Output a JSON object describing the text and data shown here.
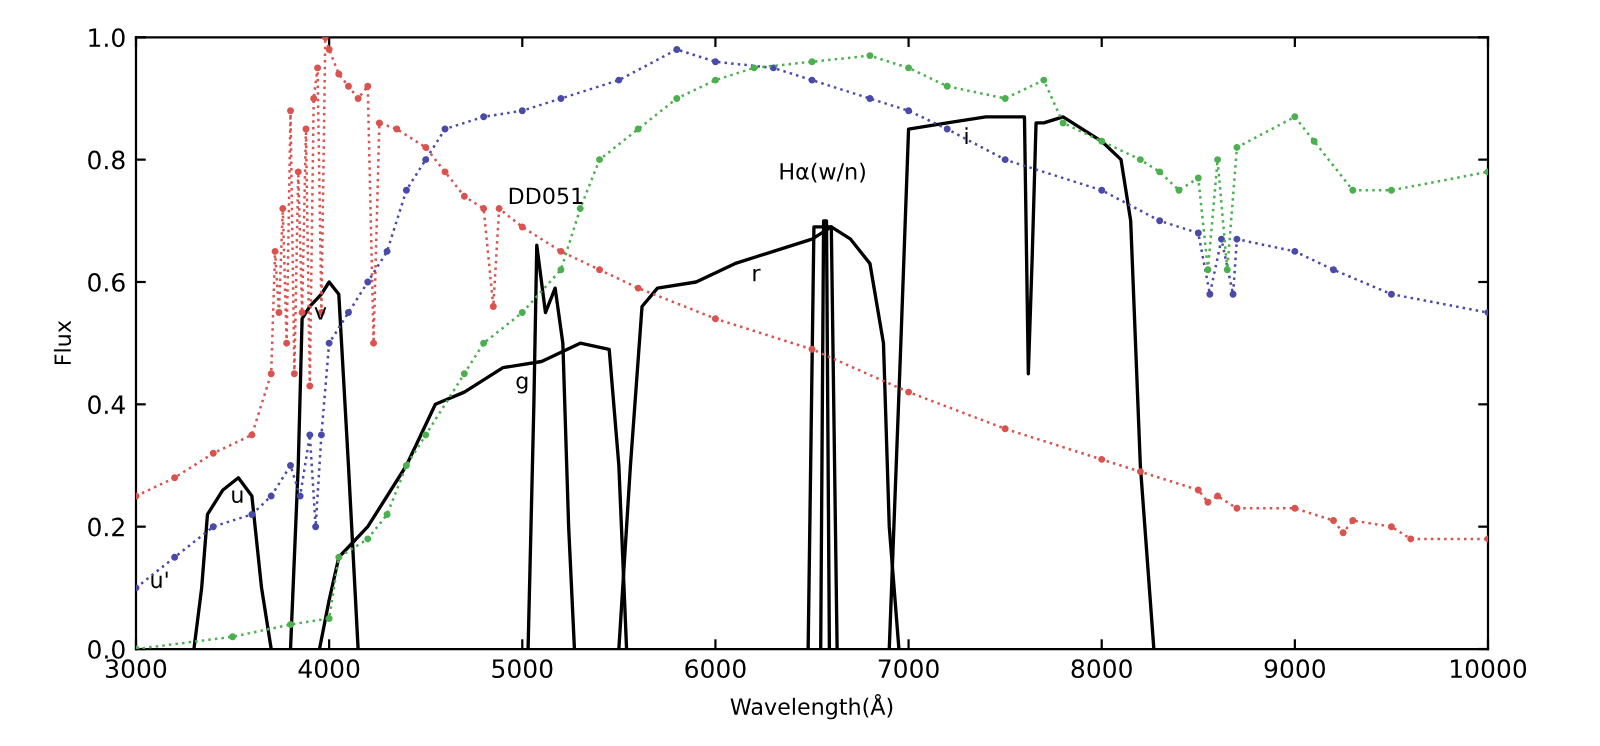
{
  "chart_data": {
    "type": "line",
    "xlabel": "Wavelength(Å)",
    "ylabel": "Flux",
    "xlim": [
      3000,
      10000
    ],
    "ylim": [
      0,
      1.0
    ],
    "xticks": [
      3000,
      4000,
      5000,
      6000,
      7000,
      8000,
      9000,
      10000
    ],
    "yticks": [
      {
        "value": 0,
        "label": "0.0"
      },
      0.2,
      0.4,
      0.6,
      0.8,
      {
        "value": 1.0,
        "label": "1.0"
      }
    ],
    "grid": false,
    "legend": false,
    "series": [
      {
        "color": "#d9534f",
        "line_style": "dotted",
        "marker": "circle",
        "x": [
          3000,
          3200,
          3400,
          3600,
          3700,
          3720,
          3740,
          3760,
          3780,
          3800,
          3820,
          3840,
          3860,
          3880,
          3900,
          3920,
          3940,
          3960,
          3980,
          4000,
          4050,
          4100,
          4150,
          4200,
          4230,
          4260,
          4350,
          4500,
          4600,
          4700,
          4800,
          4850,
          4880,
          5000,
          5200,
          5400,
          5600,
          6000,
          6500,
          7000,
          7500,
          8000,
          8200,
          8500,
          8550,
          8600,
          8700,
          9000,
          9200,
          9250,
          9300,
          9500,
          9600,
          10000
        ],
        "values": [
          0.25,
          0.28,
          0.32,
          0.35,
          0.45,
          0.65,
          0.55,
          0.72,
          0.5,
          0.88,
          0.45,
          0.78,
          0.55,
          0.85,
          0.43,
          0.9,
          0.95,
          0.55,
          1.0,
          0.98,
          0.94,
          0.92,
          0.9,
          0.92,
          0.5,
          0.86,
          0.85,
          0.82,
          0.78,
          0.74,
          0.72,
          0.56,
          0.72,
          0.69,
          0.65,
          0.62,
          0.59,
          0.54,
          0.49,
          0.42,
          0.36,
          0.31,
          0.29,
          0.26,
          0.24,
          0.25,
          0.23,
          0.23,
          0.21,
          0.19,
          0.21,
          0.2,
          0.18,
          0.18
        ]
      },
      {
        "color": "#4a4aa8",
        "line_style": "dotted",
        "marker": "circle",
        "x": [
          3000,
          3200,
          3400,
          3600,
          3700,
          3800,
          3850,
          3900,
          3930,
          3960,
          4000,
          4100,
          4200,
          4300,
          4400,
          4500,
          4600,
          4800,
          5000,
          5200,
          5500,
          5800,
          6000,
          6300,
          6500,
          6800,
          7000,
          7200,
          7500,
          8000,
          8300,
          8500,
          8560,
          8620,
          8680,
          8700,
          9000,
          9200,
          9500,
          10000
        ],
        "values": [
          0.1,
          0.15,
          0.2,
          0.22,
          0.25,
          0.3,
          0.25,
          0.35,
          0.2,
          0.35,
          0.5,
          0.55,
          0.6,
          0.65,
          0.75,
          0.8,
          0.85,
          0.87,
          0.88,
          0.9,
          0.93,
          0.98,
          0.96,
          0.95,
          0.93,
          0.9,
          0.88,
          0.85,
          0.8,
          0.75,
          0.7,
          0.68,
          0.58,
          0.67,
          0.58,
          0.67,
          0.65,
          0.62,
          0.58,
          0.55
        ]
      },
      {
        "color": "#4caf50",
        "line_style": "dotted",
        "marker": "circle",
        "x": [
          3000,
          3500,
          3800,
          4000,
          4050,
          4200,
          4300,
          4400,
          4500,
          4700,
          4800,
          5000,
          5200,
          5300,
          5400,
          5600,
          5800,
          6000,
          6200,
          6500,
          6800,
          7000,
          7200,
          7500,
          7700,
          7800,
          8000,
          8200,
          8300,
          8400,
          8500,
          8550,
          8600,
          8650,
          8700,
          9000,
          9100,
          9300,
          9500,
          10000
        ],
        "values": [
          0.0,
          0.02,
          0.04,
          0.05,
          0.15,
          0.18,
          0.22,
          0.3,
          0.35,
          0.45,
          0.5,
          0.55,
          0.62,
          0.72,
          0.8,
          0.85,
          0.9,
          0.93,
          0.95,
          0.96,
          0.97,
          0.95,
          0.92,
          0.9,
          0.93,
          0.86,
          0.83,
          0.8,
          0.78,
          0.75,
          0.77,
          0.62,
          0.8,
          0.62,
          0.82,
          0.87,
          0.83,
          0.75,
          0.75,
          0.78
        ]
      },
      {
        "name": "u",
        "color": "#000000",
        "x": [
          3300,
          3340,
          3370,
          3450,
          3530,
          3600,
          3650,
          3700
        ],
        "values": [
          0,
          0.1,
          0.22,
          0.26,
          0.28,
          0.25,
          0.1,
          0
        ]
      },
      {
        "name": "v",
        "color": "#000000",
        "x": [
          3800,
          3840,
          3860,
          3900,
          3960,
          4000,
          4050,
          4100,
          4150
        ],
        "values": [
          0,
          0.3,
          0.54,
          0.56,
          0.58,
          0.6,
          0.58,
          0.3,
          0
        ]
      },
      {
        "name": "g",
        "color": "#000000",
        "x": [
          3950,
          4000,
          4050,
          4200,
          4400,
          4550,
          4700,
          4900,
          5100,
          5300,
          5450,
          5500,
          5540
        ],
        "values": [
          0,
          0.08,
          0.15,
          0.2,
          0.3,
          0.4,
          0.42,
          0.46,
          0.47,
          0.5,
          0.49,
          0.3,
          0
        ]
      },
      {
        "name": "DD051",
        "color": "#000000",
        "x": [
          5030,
          5060,
          5075,
          5120,
          5170,
          5210,
          5240,
          5270
        ],
        "values": [
          0,
          0.4,
          0.66,
          0.55,
          0.59,
          0.5,
          0.2,
          0
        ]
      },
      {
        "name": "r",
        "color": "#000000",
        "x": [
          5500,
          5560,
          5620,
          5700,
          5900,
          6100,
          6300,
          6500,
          6600,
          6700,
          6800,
          6870,
          6900,
          6950
        ],
        "values": [
          0,
          0.3,
          0.56,
          0.59,
          0.6,
          0.63,
          0.65,
          0.67,
          0.69,
          0.67,
          0.63,
          0.5,
          0.2,
          0
        ]
      },
      {
        "name": "Hα(w/n)",
        "color": "#000000",
        "x": [
          6480,
          6510,
          6600,
          6630,
          null,
          6545,
          6560,
          6575,
          6590
        ],
        "values": [
          0,
          0.69,
          0.69,
          0,
          null,
          0,
          0.7,
          0.7,
          0
        ]
      },
      {
        "name": "i",
        "color": "#000000",
        "x": [
          6900,
          6960,
          7000,
          7200,
          7400,
          7600,
          7620,
          7640,
          7660,
          7700,
          7800,
          8000,
          8100,
          8150,
          8200,
          8270
        ],
        "values": [
          0,
          0.5,
          0.85,
          0.86,
          0.87,
          0.87,
          0.45,
          0.64,
          0.86,
          0.86,
          0.87,
          0.83,
          0.8,
          0.7,
          0.3,
          0
        ]
      }
    ],
    "annotations": [
      "u'"
    ]
  }
}
